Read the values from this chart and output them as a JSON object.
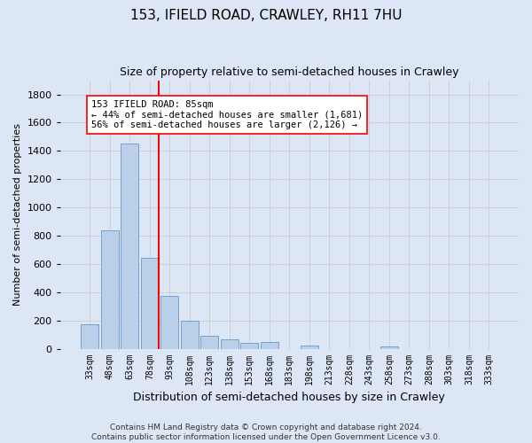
{
  "title1": "153, IFIELD ROAD, CRAWLEY, RH11 7HU",
  "title2": "Size of property relative to semi-detached houses in Crawley",
  "xlabel": "Distribution of semi-detached houses by size in Crawley",
  "ylabel": "Number of semi-detached properties",
  "footnote1": "Contains HM Land Registry data © Crown copyright and database right 2024.",
  "footnote2": "Contains public sector information licensed under the Open Government Licence v3.0.",
  "bin_labels": [
    "33sqm",
    "48sqm",
    "63sqm",
    "78sqm",
    "93sqm",
    "108sqm",
    "123sqm",
    "138sqm",
    "153sqm",
    "168sqm",
    "183sqm",
    "198sqm",
    "213sqm",
    "228sqm",
    "243sqm",
    "258sqm",
    "273sqm",
    "288sqm",
    "303sqm",
    "318sqm",
    "333sqm"
  ],
  "bar_values": [
    175,
    840,
    1450,
    640,
    375,
    200,
    90,
    65,
    40,
    45,
    0,
    25,
    0,
    0,
    0,
    18,
    0,
    0,
    0,
    0,
    0
  ],
  "bar_color": "#bad0e8",
  "bar_edge_color": "#6699cc",
  "subject_line_color": "red",
  "annotation_text": "153 IFIELD ROAD: 85sqm\n← 44% of semi-detached houses are smaller (1,681)\n56% of semi-detached houses are larger (2,126) →",
  "annotation_box_color": "white",
  "annotation_box_edge": "red",
  "ylim": [
    0,
    1900
  ],
  "yticks": [
    0,
    200,
    400,
    600,
    800,
    1000,
    1200,
    1400,
    1600,
    1800
  ],
  "grid_color": "#cccccc",
  "bg_color": "#dce6f5",
  "title1_fontsize": 11,
  "title2_fontsize": 9,
  "xlabel_fontsize": 9,
  "ylabel_fontsize": 8,
  "footnote_fontsize": 6.5
}
